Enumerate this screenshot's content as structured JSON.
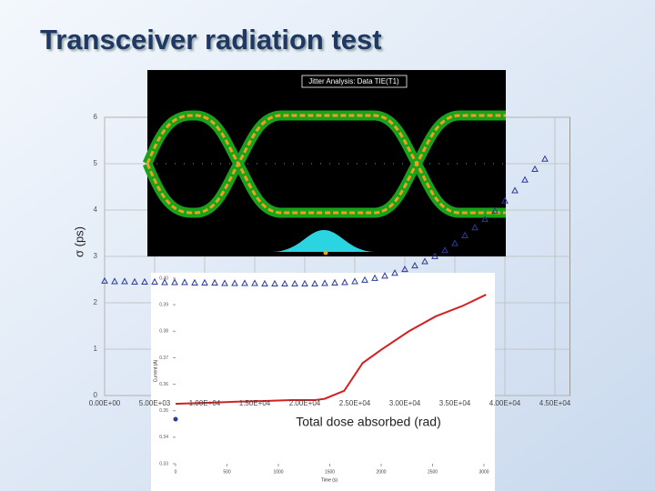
{
  "title": "Transceiver radiation test",
  "eye_title": "Jitter Analysis: Data TIE(T1)",
  "chart_data": [
    {
      "type": "scatter",
      "x_label": "Total dose absorbed (rad)",
      "y_label": "σ (ps)",
      "series": [
        {
          "color": "#2b3a9e",
          "x": [
            0,
            1000,
            2000,
            3000,
            4000,
            5000,
            6000,
            7000,
            8000,
            9000,
            10000,
            11000,
            12000,
            13000,
            14000,
            15000,
            16000,
            17000,
            18000,
            19000,
            20000,
            21000,
            22000,
            23000,
            24000,
            25000,
            26000,
            27000,
            28000,
            29000,
            30000,
            31000,
            32000,
            33000,
            34000,
            35000,
            36000,
            37000,
            38000,
            39000,
            40000,
            41000,
            42000,
            43000,
            44000
          ],
          "values": [
            2.47,
            2.46,
            2.46,
            2.45,
            2.45,
            2.45,
            2.44,
            2.44,
            2.44,
            2.43,
            2.43,
            2.43,
            2.42,
            2.42,
            2.42,
            2.42,
            2.41,
            2.41,
            2.41,
            2.41,
            2.41,
            2.41,
            2.42,
            2.43,
            2.44,
            2.46,
            2.49,
            2.53,
            2.58,
            2.64,
            2.72,
            2.8,
            2.89,
            3.0,
            3.13,
            3.28,
            3.45,
            3.62,
            3.8,
            3.98,
            4.2,
            4.42,
            4.65,
            4.88,
            5.1
          ]
        }
      ],
      "xlim": [
        0,
        46500
      ],
      "xticks": [
        {
          "value": 0,
          "label": "0.00E+00"
        },
        {
          "value": 5000,
          "label": "5.00E+03"
        },
        {
          "value": 10000,
          "label": "1.00E+04"
        },
        {
          "value": 15000,
          "label": "1.50E+04"
        },
        {
          "value": 20000,
          "label": "2.00E+04"
        },
        {
          "value": 25000,
          "label": "2.50E+04"
        },
        {
          "value": 30000,
          "label": "3.00E+04"
        },
        {
          "value": 35000,
          "label": "3.50E+04"
        },
        {
          "value": 40000,
          "label": "4.00E+04"
        },
        {
          "value": 45000,
          "label": "4.50E+04"
        }
      ],
      "ylim": [
        0,
        6
      ],
      "yticks": [
        0,
        1,
        2,
        3,
        4,
        5,
        6
      ],
      "grid": true
    },
    {
      "type": "line",
      "x_label": "Time (s)",
      "y_label": "Current (A)",
      "series": [
        {
          "color": "#d42020",
          "x": [
            0,
            300,
            600,
            900,
            1130,
            1350,
            1450,
            1640,
            1820,
            2000,
            2270,
            2530,
            2800,
            3020
          ],
          "values": [
            0.3526,
            0.353,
            0.3534,
            0.3537,
            0.354,
            0.354,
            0.3545,
            0.3575,
            0.368,
            0.373,
            0.38,
            0.3856,
            0.3897,
            0.3938
          ]
        },
        {
          "color": "#2b3a9e",
          "x": [
            0
          ],
          "values": [
            0.3468
          ]
        }
      ],
      "xlim": [
        0,
        3000
      ],
      "xticks": [
        0,
        500,
        1000,
        1500,
        2000,
        2500,
        3000
      ],
      "ylim": [
        0.33,
        0.4
      ],
      "yticks": [
        {
          "value": 0.33,
          "label": "0.33"
        },
        {
          "value": 0.34,
          "label": "0.34"
        },
        {
          "value": 0.35,
          "label": "0.35"
        },
        {
          "value": 0.36,
          "label": "0.36"
        },
        {
          "value": 0.37,
          "label": "0.37"
        },
        {
          "value": 0.38,
          "label": "0.38"
        },
        {
          "value": 0.39,
          "label": "0.39"
        },
        {
          "value": 0.4,
          "label": "0.40"
        }
      ]
    }
  ]
}
